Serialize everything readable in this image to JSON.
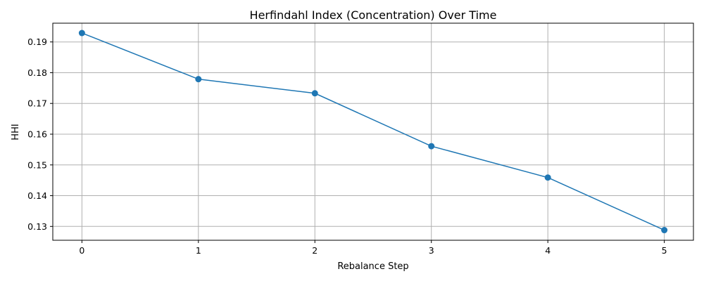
{
  "chart_data": {
    "type": "line",
    "title": "Herfindahl Index (Concentration) Over Time",
    "xlabel": "Rebalance Step",
    "ylabel": "HHI",
    "x": [
      0,
      1,
      2,
      3,
      4,
      5
    ],
    "series": [
      {
        "values": [
          0.1929,
          0.1779,
          0.1733,
          0.1561,
          0.1459,
          0.1288
        ]
      }
    ],
    "xlim": [
      -0.25,
      5.25
    ],
    "ylim": [
      0.1255,
      0.1961
    ],
    "xticks": [
      0,
      1,
      2,
      3,
      4,
      5
    ],
    "xtick_labels": [
      "0",
      "1",
      "2",
      "3",
      "4",
      "5"
    ],
    "yticks": [
      0.13,
      0.14,
      0.15,
      0.16,
      0.17,
      0.18,
      0.19
    ],
    "ytick_labels": [
      "0.13",
      "0.14",
      "0.15",
      "0.16",
      "0.17",
      "0.18",
      "0.19"
    ],
    "grid": true,
    "marker": "circle",
    "line_color": "#1f77b4"
  }
}
